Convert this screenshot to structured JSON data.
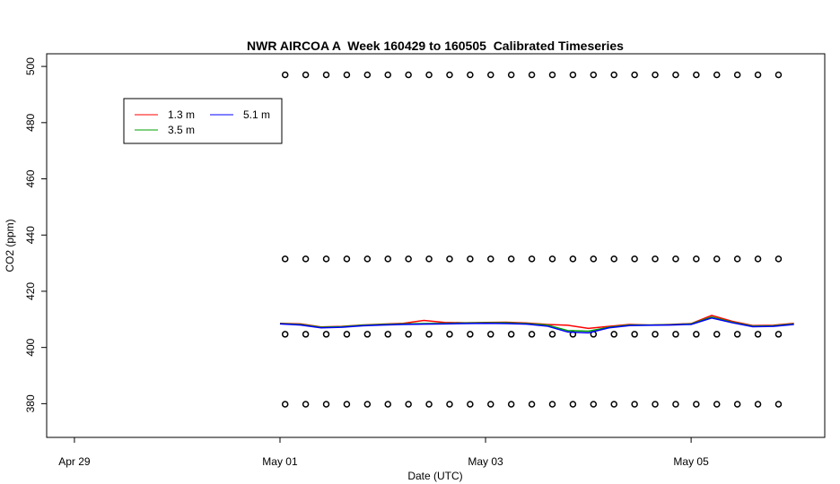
{
  "chart_data": {
    "type": "line",
    "title": "NWR AIRCOA A  Week 160429 to 160505  Calibrated Timeseries",
    "xlabel": "Date (UTC)",
    "ylabel": "CO2 (ppm)",
    "xlim": [
      -0.27,
      7.3
    ],
    "xticks": [
      {
        "value": 0,
        "label": "Apr 29"
      },
      {
        "value": 2,
        "label": "May 01"
      },
      {
        "value": 4,
        "label": "May 03"
      },
      {
        "value": 6,
        "label": "May 05"
      }
    ],
    "ylim": [
      368,
      504.5
    ],
    "yticks": [
      380,
      400,
      420,
      440,
      460,
      480,
      500
    ],
    "x": [
      2.0,
      2.2,
      2.4,
      2.6,
      2.8,
      3.0,
      3.2,
      3.4,
      3.6,
      3.8,
      4.0,
      4.2,
      4.4,
      4.6,
      4.8,
      5.0,
      5.2,
      5.4,
      5.6,
      5.8,
      6.0,
      6.2,
      6.4,
      6.6,
      6.8,
      7.0
    ],
    "series": [
      {
        "name": "1.3 m",
        "color": "#ff0000",
        "values": [
          408.6,
          408.4,
          407.3,
          407.5,
          408,
          408.3,
          408.6,
          409.6,
          408.9,
          408.8,
          408.9,
          409,
          408.7,
          408.2,
          407.9,
          406.8,
          407.5,
          408.2,
          408,
          408.2,
          408.5,
          411.4,
          409.3,
          407.8,
          407.9,
          408.6
        ]
      },
      {
        "name": "3.5 m",
        "color": "#00a000",
        "values": [
          408.5,
          408.2,
          407.2,
          407.4,
          407.9,
          408.2,
          408.4,
          408.5,
          408.6,
          408.7,
          408.8,
          408.8,
          408.5,
          408,
          406,
          405.8,
          407.2,
          408,
          408,
          408.1,
          408.4,
          410.8,
          409,
          407.6,
          407.7,
          408.4
        ]
      },
      {
        "name": "5.1 m",
        "color": "#0000ff",
        "values": [
          408.4,
          408,
          407,
          407.2,
          407.7,
          408,
          408.2,
          408.3,
          408.4,
          408.5,
          408.6,
          408.5,
          408.3,
          407.6,
          405.5,
          405.2,
          407,
          407.8,
          407.9,
          408,
          408.2,
          410.5,
          408.8,
          407.4,
          407.5,
          408.2
        ]
      }
    ],
    "legend": "top-left",
    "reference_x": [
      2.05,
      2.25,
      2.45,
      2.65,
      2.85,
      3.05,
      3.25,
      3.45,
      3.65,
      3.85,
      4.05,
      4.25,
      4.45,
      4.65,
      4.85,
      5.05,
      5.25,
      5.45,
      5.65,
      5.85,
      6.05,
      6.25,
      6.45,
      6.65,
      6.85
    ],
    "reference_points": [
      {
        "color": "#000000",
        "values": [
          497,
          497,
          497,
          497,
          497,
          497,
          497,
          497,
          497,
          497,
          497,
          497,
          497,
          497,
          497,
          497,
          497,
          497,
          497,
          497,
          497,
          497,
          497,
          497,
          497
        ]
      },
      {
        "color": "#000000",
        "values": [
          431.5,
          431.5,
          431.5,
          431.5,
          431.5,
          431.5,
          431.5,
          431.5,
          431.5,
          431.5,
          431.5,
          431.5,
          431.5,
          431.5,
          431.5,
          431.5,
          431.5,
          431.5,
          431.5,
          431.5,
          431.5,
          431.5,
          431.5,
          431.5,
          431.5
        ]
      },
      {
        "color": "#000000",
        "values": [
          404.7,
          404.7,
          404.7,
          404.7,
          404.7,
          404.7,
          404.7,
          404.7,
          404.7,
          404.7,
          404.7,
          404.7,
          404.7,
          404.7,
          404.7,
          404.7,
          404.7,
          404.7,
          404.7,
          404.7,
          404.7,
          404.7,
          404.7,
          404.7,
          404.7
        ]
      },
      {
        "color": "#000000",
        "values": [
          379.8,
          379.8,
          379.8,
          379.8,
          379.8,
          379.8,
          379.8,
          379.8,
          379.8,
          379.8,
          379.8,
          379.8,
          379.8,
          379.8,
          379.8,
          379.8,
          379.8,
          379.8,
          379.8,
          379.8,
          379.8,
          379.8,
          379.8,
          379.8,
          379.8
        ]
      }
    ]
  }
}
